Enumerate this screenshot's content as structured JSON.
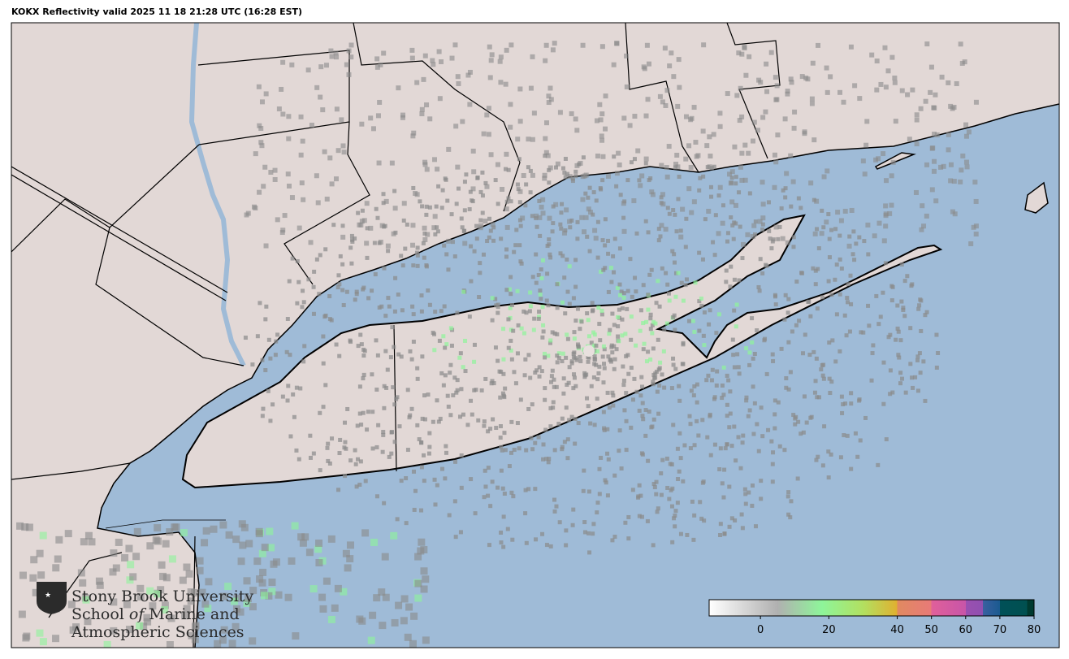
{
  "title": "KOKX Reflectivity valid 2025 11 18 21:28 UTC (16:28 EST)",
  "map": {
    "radar_site": "KOKX",
    "colors": {
      "water": "#9fbbd7",
      "land": "#e2d8d6",
      "border": "#000000",
      "river": "#a9c3dd"
    }
  },
  "colorbar": {
    "range": [
      -15,
      80
    ],
    "ticks": [
      "0",
      "20",
      "40",
      "50",
      "60",
      "70",
      "80"
    ],
    "tick_values": [
      0,
      20,
      40,
      50,
      60,
      70,
      80
    ],
    "stops": [
      {
        "v": -15,
        "c": "#ffffff"
      },
      {
        "v": 5,
        "c": "#b0b0b0"
      },
      {
        "v": 18,
        "c": "#8ef59a"
      },
      {
        "v": 30,
        "c": "#b2e060"
      },
      {
        "v": 40,
        "c": "#e0b030"
      },
      {
        "v": 40.01,
        "c": "#e08a60"
      },
      {
        "v": 50,
        "c": "#e87a78"
      },
      {
        "v": 50.01,
        "c": "#e0609a"
      },
      {
        "v": 60,
        "c": "#c855a8"
      },
      {
        "v": 60.01,
        "c": "#9a50b0"
      },
      {
        "v": 65,
        "c": "#9050b0"
      },
      {
        "v": 65.01,
        "c": "#3a60a0"
      },
      {
        "v": 70,
        "c": "#1a5a90"
      },
      {
        "v": 70.01,
        "c": "#005058"
      },
      {
        "v": 78,
        "c": "#005050"
      },
      {
        "v": 78.01,
        "c": "#003a30"
      },
      {
        "v": 80,
        "c": "#003a30"
      }
    ]
  },
  "logo": {
    "line1": "Stony Brook University",
    "line2a": "School ",
    "line2b": "of",
    "line2c": " Marine and",
    "line3": "Atmospheric Sciences"
  }
}
